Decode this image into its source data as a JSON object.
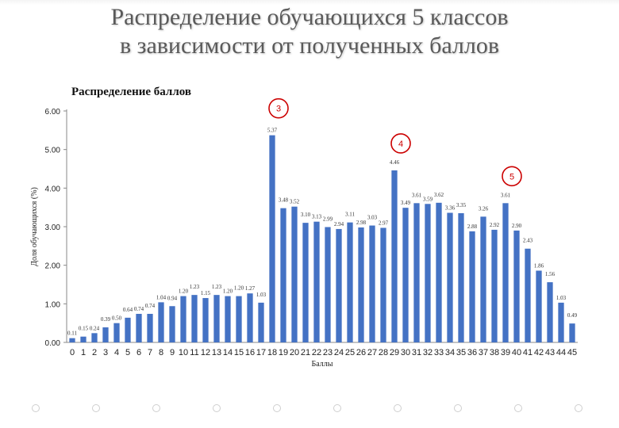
{
  "page": {
    "title_line1": "Распределение обучающихся 5 классов",
    "title_line2": "в зависимости от полученных баллов"
  },
  "chart_data": {
    "type": "bar",
    "title": "Распределение баллов",
    "xlabel": "Баллы",
    "ylabel": "Доля обучающихся (%)",
    "ylim": [
      0,
      6
    ],
    "yticks": [
      "0.00",
      "1.00",
      "2.00",
      "3.00",
      "4.00",
      "5.00",
      "6.00"
    ],
    "bar_color": "#4472c4",
    "grid": false,
    "categories": [
      "0",
      "1",
      "2",
      "3",
      "4",
      "5",
      "6",
      "7",
      "8",
      "9",
      "10",
      "11",
      "12",
      "13",
      "14",
      "15",
      "16",
      "17",
      "18",
      "19",
      "20",
      "21",
      "22",
      "23",
      "24",
      "25",
      "26",
      "27",
      "28",
      "29",
      "30",
      "31",
      "32",
      "33",
      "34",
      "35",
      "36",
      "37",
      "38",
      "39",
      "40",
      "41",
      "42",
      "43",
      "44",
      "45"
    ],
    "values": [
      0.11,
      0.15,
      0.24,
      0.39,
      0.5,
      0.64,
      0.74,
      0.74,
      1.04,
      0.94,
      1.2,
      1.23,
      1.15,
      1.23,
      1.2,
      1.2,
      1.27,
      1.03,
      5.37,
      3.48,
      3.52,
      3.1,
      3.13,
      2.99,
      2.94,
      3.11,
      2.98,
      3.03,
      2.97,
      4.46,
      3.49,
      3.61,
      3.59,
      3.62,
      3.36,
      3.35,
      2.88,
      3.26,
      2.92,
      3.61,
      2.9,
      2.43,
      1.86,
      1.56,
      1.03,
      0.49
    ],
    "data_labels": [
      "0.11",
      "0.15",
      "0.24",
      "0.39",
      "0.50",
      "0.64",
      "0.74",
      "0.74",
      "1.04",
      "0.94",
      "1.20",
      "1.23",
      "1.15",
      "1.23",
      "1.20",
      "1.20",
      "1.27",
      "1.03",
      "5.37",
      "3.48",
      "3.52",
      "3.10",
      "3.13",
      "2.99",
      "2.94",
      "3.11",
      "2.98",
      "3.03",
      "2.97",
      "4.46",
      "3.49",
      "3.61",
      "3.59",
      "3.62",
      "3.36",
      "3.35",
      "2.88",
      "3.26",
      "2.92",
      "3.61",
      "2.90",
      "2.43",
      "1.86",
      "1.56",
      "1.03",
      "0.49"
    ],
    "annotations": [
      {
        "text": "3",
        "category": "18",
        "color": "#cc0000"
      },
      {
        "text": "4",
        "category": "29",
        "color": "#cc0000"
      },
      {
        "text": "5",
        "category": "39",
        "color": "#cc0000"
      }
    ]
  }
}
